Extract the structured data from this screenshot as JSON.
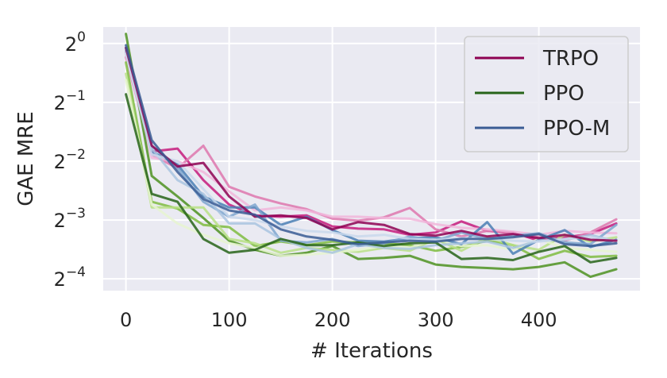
{
  "chart_data": {
    "type": "line",
    "xlabel": "# Iterations",
    "ylabel": "GAE MRE",
    "y_scale": "log2",
    "xlim": [
      -22,
      498
    ],
    "ylim_exp": [
      -4.2,
      0.28
    ],
    "x_ticks": [
      "0",
      "100",
      "200",
      "300",
      "400"
    ],
    "x_tick_values": [
      0,
      100,
      200,
      300,
      400
    ],
    "y_ticks": [
      {
        "base": "2",
        "exp": "0",
        "value_exp": 0
      },
      {
        "base": "2",
        "exp": "−1",
        "value_exp": -1
      },
      {
        "base": "2",
        "exp": "−2",
        "value_exp": -2
      },
      {
        "base": "2",
        "exp": "−3",
        "value_exp": -3
      },
      {
        "base": "2",
        "exp": "−4",
        "value_exp": -4
      }
    ],
    "grid": true,
    "background": "#EAEAF2",
    "legend_position": "top-right",
    "x": [
      0,
      25,
      50,
      75,
      100,
      125,
      150,
      175,
      200,
      225,
      250,
      275,
      300,
      325,
      350,
      375,
      400,
      425,
      450,
      475
    ],
    "series": [
      {
        "name": "TRPO",
        "color": "#8E0152",
        "legend": true,
        "values": [
          0.95,
          0.3,
          0.235,
          0.245,
          0.165,
          0.13,
          0.132,
          0.128,
          0.112,
          0.122,
          0.118,
          0.106,
          0.104,
          0.11,
          0.103,
          0.106,
          0.101,
          0.105,
          0.099,
          0.098
        ]
      },
      {
        "color": "#C51B7D",
        "values": [
          0.9,
          0.28,
          0.29,
          0.2,
          0.15,
          0.132,
          0.13,
          0.132,
          0.116,
          0.113,
          0.112,
          0.105,
          0.108,
          0.123,
          0.11,
          0.108,
          0.098,
          0.102,
          0.106,
          0.12
        ]
      },
      {
        "color": "#DE77AE",
        "values": [
          0.85,
          0.27,
          0.23,
          0.3,
          0.185,
          0.165,
          0.152,
          0.142,
          0.127,
          0.124,
          0.129,
          0.144,
          0.112,
          0.103,
          0.11,
          0.107,
          0.102,
          0.098,
          0.108,
          0.126
        ]
      },
      {
        "color": "#F1B6DA",
        "values": [
          0.88,
          0.26,
          0.25,
          0.22,
          0.175,
          0.14,
          0.145,
          0.14,
          0.13,
          0.13,
          0.128,
          0.127,
          0.119,
          0.114,
          0.112,
          0.109,
          0.105,
          0.11,
          0.108,
          0.107
        ]
      },
      {
        "name": "PPO",
        "color": "#276419",
        "legend": true,
        "values": [
          0.55,
          0.17,
          0.155,
          0.1,
          0.085,
          0.088,
          0.1,
          0.093,
          0.093,
          0.096,
          0.092,
          0.095,
          0.096,
          0.079,
          0.08,
          0.078,
          0.086,
          0.092,
          0.076,
          0.08
        ]
      },
      {
        "color": "#4D9221",
        "values": [
          1.12,
          0.21,
          0.165,
          0.128,
          0.098,
          0.088,
          0.082,
          0.085,
          0.092,
          0.079,
          0.08,
          0.082,
          0.074,
          0.072,
          0.071,
          0.07,
          0.072,
          0.076,
          0.064,
          0.07
        ]
      },
      {
        "color": "#7FBC41",
        "values": [
          0.8,
          0.155,
          0.143,
          0.118,
          0.115,
          0.092,
          0.097,
          0.093,
          0.097,
          0.096,
          0.095,
          0.093,
          0.087,
          0.091,
          0.098,
          0.093,
          0.079,
          0.087,
          0.081,
          0.082
        ]
      },
      {
        "color": "#B8E186",
        "values": [
          0.7,
          0.145,
          0.145,
          0.145,
          0.1,
          0.095,
          0.085,
          0.09,
          0.088,
          0.086,
          0.09,
          0.087,
          0.1,
          0.087,
          0.102,
          0.093,
          0.088,
          0.105,
          0.097,
          0.102
        ]
      },
      {
        "color": "#E6F5D0",
        "values": [
          0.65,
          0.15,
          0.12,
          0.105,
          0.095,
          0.09,
          0.082,
          0.083,
          0.085,
          0.088,
          0.092,
          0.09,
          0.1,
          0.092,
          0.093,
          0.088,
          0.1,
          0.09,
          0.088,
          0.086
        ]
      },
      {
        "name": "PPO-M",
        "color": "#3A5C94",
        "legend": true,
        "values": [
          0.98,
          0.32,
          0.22,
          0.16,
          0.14,
          0.133,
          0.112,
          0.103,
          0.099,
          0.094,
          0.096,
          0.098,
          0.097,
          0.1,
          0.1,
          0.102,
          0.106,
          0.094,
          0.092,
          0.095
        ]
      },
      {
        "color": "#4A7FB5",
        "values": [
          0.95,
          0.28,
          0.24,
          0.165,
          0.145,
          0.145,
          0.118,
          0.13,
          0.111,
          0.098,
          0.097,
          0.101,
          0.102,
          0.094,
          0.122,
          0.084,
          0.099,
          0.111,
          0.091,
          0.099
        ]
      },
      {
        "color": "#7EA6CF",
        "values": [
          0.92,
          0.3,
          0.23,
          0.155,
          0.13,
          0.15,
          0.098,
          0.096,
          0.1,
          0.092,
          0.095,
          0.103,
          0.098,
          0.108,
          0.1,
          0.104,
          0.107,
          0.096,
          0.094,
          0.118
        ]
      },
      {
        "color": "#A9C4E0",
        "values": [
          0.9,
          0.29,
          0.2,
          0.17,
          0.12,
          0.12,
          0.1,
          0.09,
          0.085,
          0.094,
          0.09,
          0.089,
          0.093,
          0.095,
          0.097,
          0.09,
          0.098,
          0.099,
          0.105,
          0.097
        ]
      },
      {
        "color": "#C9D8EC",
        "values": [
          0.89,
          0.27,
          0.25,
          0.18,
          0.13,
          0.125,
          0.116,
          0.11,
          0.108,
          0.103,
          0.105,
          0.1,
          0.099,
          0.101,
          0.1,
          0.098,
          0.097,
          0.1,
          0.102,
          0.098
        ]
      }
    ]
  }
}
